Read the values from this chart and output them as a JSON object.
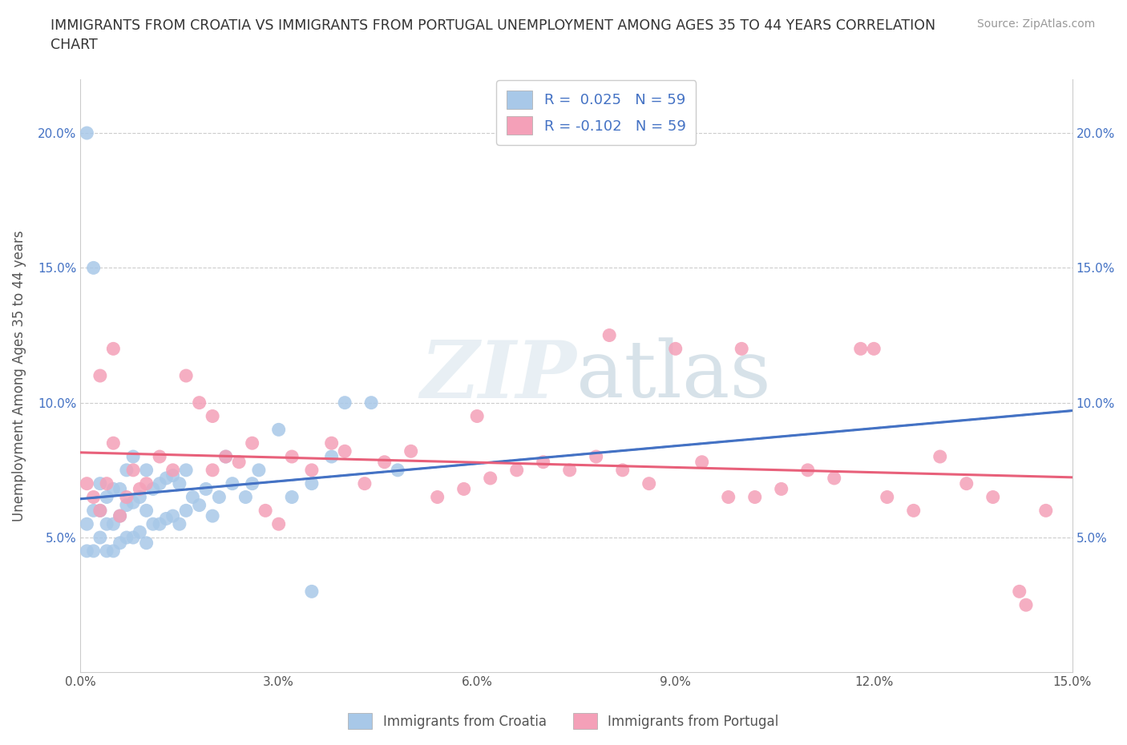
{
  "title": "IMMIGRANTS FROM CROATIA VS IMMIGRANTS FROM PORTUGAL UNEMPLOYMENT AMONG AGES 35 TO 44 YEARS CORRELATION\nCHART",
  "source": "Source: ZipAtlas.com",
  "ylabel": "Unemployment Among Ages 35 to 44 years",
  "xlim": [
    0.0,
    0.15
  ],
  "ylim": [
    0.0,
    0.22
  ],
  "xtick_vals": [
    0.0,
    0.03,
    0.06,
    0.09,
    0.12,
    0.15
  ],
  "xticklabels": [
    "0.0%",
    "3.0%",
    "6.0%",
    "9.0%",
    "12.0%",
    "15.0%"
  ],
  "ytick_vals": [
    0.05,
    0.1,
    0.15,
    0.2
  ],
  "yticklabels": [
    "5.0%",
    "10.0%",
    "15.0%",
    "20.0%"
  ],
  "croatia_color": "#a8c8e8",
  "portugal_color": "#f4a0b8",
  "croatia_line_color": "#4472c4",
  "portugal_line_color": "#e8607a",
  "R_croatia": 0.025,
  "R_portugal": -0.102,
  "N_croatia": 59,
  "N_portugal": 59,
  "legend_labels": [
    "Immigrants from Croatia",
    "Immigrants from Portugal"
  ],
  "croatia_scatter_x": [
    0.001,
    0.001,
    0.002,
    0.002,
    0.003,
    0.003,
    0.003,
    0.004,
    0.004,
    0.004,
    0.005,
    0.005,
    0.005,
    0.006,
    0.006,
    0.006,
    0.007,
    0.007,
    0.007,
    0.008,
    0.008,
    0.008,
    0.009,
    0.009,
    0.01,
    0.01,
    0.01,
    0.011,
    0.011,
    0.012,
    0.012,
    0.013,
    0.013,
    0.014,
    0.014,
    0.015,
    0.015,
    0.016,
    0.016,
    0.017,
    0.018,
    0.019,
    0.02,
    0.021,
    0.022,
    0.023,
    0.025,
    0.026,
    0.027,
    0.03,
    0.032,
    0.035,
    0.038,
    0.04,
    0.044,
    0.048,
    0.001,
    0.035,
    0.002
  ],
  "croatia_scatter_y": [
    0.045,
    0.055,
    0.045,
    0.06,
    0.05,
    0.06,
    0.07,
    0.045,
    0.055,
    0.065,
    0.045,
    0.055,
    0.068,
    0.048,
    0.058,
    0.068,
    0.05,
    0.062,
    0.075,
    0.05,
    0.063,
    0.08,
    0.052,
    0.065,
    0.048,
    0.06,
    0.075,
    0.055,
    0.068,
    0.055,
    0.07,
    0.057,
    0.072,
    0.058,
    0.073,
    0.055,
    0.07,
    0.06,
    0.075,
    0.065,
    0.062,
    0.068,
    0.058,
    0.065,
    0.08,
    0.07,
    0.065,
    0.07,
    0.075,
    0.09,
    0.065,
    0.07,
    0.08,
    0.1,
    0.1,
    0.075,
    0.2,
    0.03,
    0.15
  ],
  "portugal_scatter_x": [
    0.001,
    0.002,
    0.003,
    0.004,
    0.005,
    0.006,
    0.007,
    0.008,
    0.009,
    0.01,
    0.012,
    0.014,
    0.016,
    0.018,
    0.02,
    0.022,
    0.024,
    0.026,
    0.028,
    0.03,
    0.032,
    0.035,
    0.038,
    0.04,
    0.043,
    0.046,
    0.05,
    0.054,
    0.058,
    0.062,
    0.066,
    0.07,
    0.074,
    0.078,
    0.082,
    0.086,
    0.09,
    0.094,
    0.098,
    0.102,
    0.106,
    0.11,
    0.114,
    0.118,
    0.122,
    0.126,
    0.13,
    0.134,
    0.138,
    0.142,
    0.146,
    0.003,
    0.005,
    0.02,
    0.06,
    0.08,
    0.1,
    0.12,
    0.143
  ],
  "portugal_scatter_y": [
    0.07,
    0.065,
    0.06,
    0.07,
    0.12,
    0.058,
    0.065,
    0.075,
    0.068,
    0.07,
    0.08,
    0.075,
    0.11,
    0.1,
    0.075,
    0.08,
    0.078,
    0.085,
    0.06,
    0.055,
    0.08,
    0.075,
    0.085,
    0.082,
    0.07,
    0.078,
    0.082,
    0.065,
    0.068,
    0.072,
    0.075,
    0.078,
    0.075,
    0.08,
    0.075,
    0.07,
    0.12,
    0.078,
    0.065,
    0.065,
    0.068,
    0.075,
    0.072,
    0.12,
    0.065,
    0.06,
    0.08,
    0.07,
    0.065,
    0.03,
    0.06,
    0.11,
    0.085,
    0.095,
    0.095,
    0.125,
    0.12,
    0.12,
    0.025
  ]
}
